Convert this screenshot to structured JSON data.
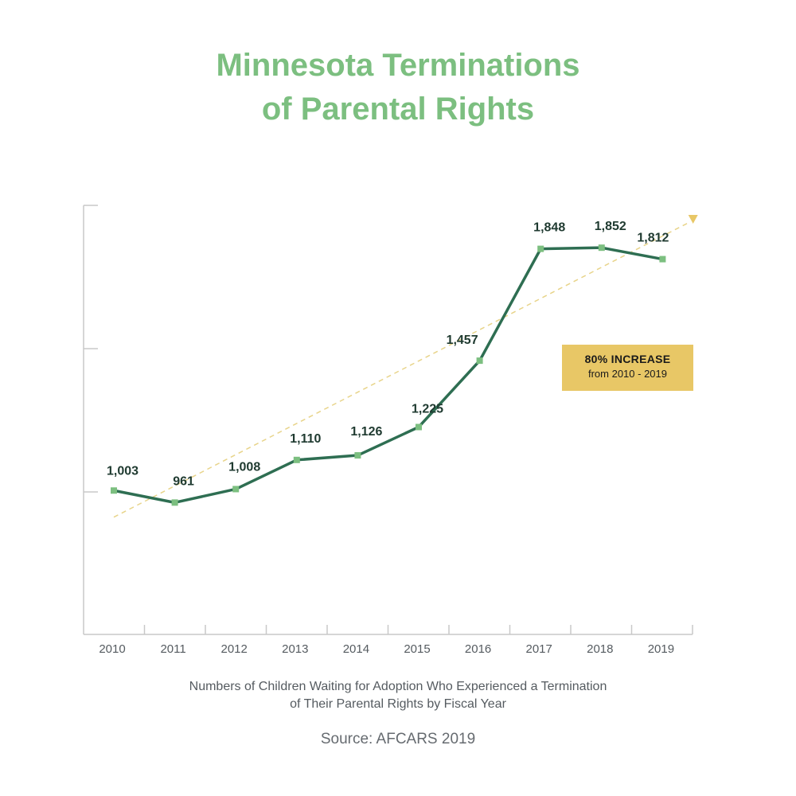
{
  "chart_data": {
    "type": "line",
    "title": [
      "Minnesota Terminations",
      "of Parental Rights"
    ],
    "categories": [
      "2010",
      "2011",
      "2012",
      "2013",
      "2014",
      "2015",
      "2016",
      "2017",
      "2018",
      "2019"
    ],
    "series": [
      {
        "name": "Children waiting for adoption who experienced a termination of parental rights",
        "values": [
          1003,
          961,
          1008,
          1110,
          1126,
          1225,
          1457,
          1848,
          1852,
          1812
        ],
        "labels": [
          "1,003",
          "961",
          "1,008",
          "1,110",
          "1,126",
          "1,225",
          "1,457",
          "1,848",
          "1,852",
          "1,812"
        ]
      }
    ],
    "trendline": {
      "style": "dashed",
      "from": [
        2010,
        910
      ],
      "to": [
        2019.5,
        1950
      ]
    },
    "ylim": [
      500,
      2000
    ],
    "annotation": {
      "headline": "80% INCREASE",
      "detail": "from 2010 - 2019"
    },
    "subtitle": [
      "Numbers of Children Waiting for Adoption Who Experienced a Termination",
      "of Their Parental Rights by Fiscal Year"
    ],
    "source": "Source: AFCARS 2019"
  },
  "colors": {
    "title": "#7cbf80",
    "line": "#2e6e52",
    "marker": "#7cbf80",
    "trend": "#e8d48a",
    "callout": "#e8c766",
    "axis": "#c8c8c8"
  }
}
